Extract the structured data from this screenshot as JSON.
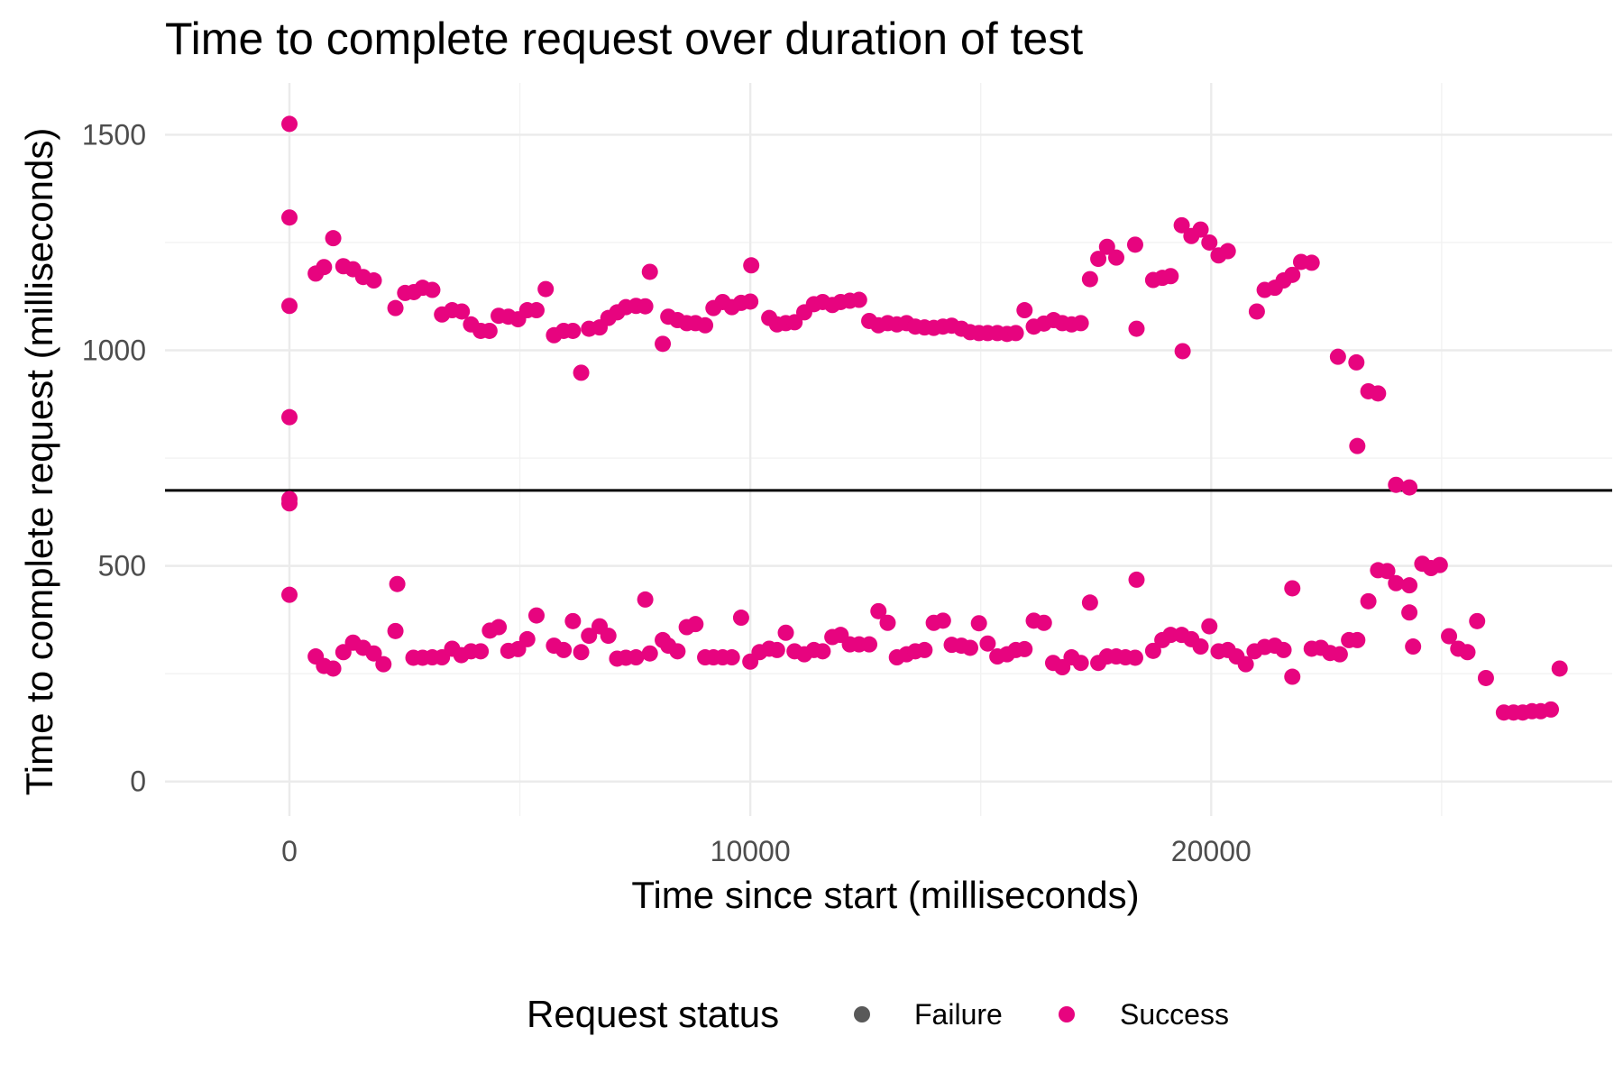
{
  "chart_data": {
    "type": "scatter",
    "title": "Time to complete request over duration of test",
    "xlabel": "Time since start (milliseconds)",
    "ylabel": "Time to complete request (milliseconds)",
    "xlim": [
      -2700,
      28700
    ],
    "ylim": [
      -80,
      1620
    ],
    "x_ticks": [
      0,
      10000,
      20000
    ],
    "x_tick_labels": [
      "0",
      "10000",
      "20000"
    ],
    "y_ticks": [
      0,
      500,
      1000,
      1500
    ],
    "y_tick_labels": [
      "0",
      "500",
      "1000",
      "1500"
    ],
    "grid": true,
    "reference_line": {
      "y": 675
    },
    "legend": {
      "title": "Request status",
      "position": "bottom",
      "items": [
        {
          "label": "Failure",
          "color": "#595959"
        },
        {
          "label": "Success",
          "color": "#e7047f"
        }
      ]
    },
    "series": [
      {
        "name": "Success",
        "color": "#e7047f",
        "points": [
          [
            0,
            1525
          ],
          [
            0,
            1308
          ],
          [
            0,
            1103
          ],
          [
            0,
            845
          ],
          [
            0,
            655
          ],
          [
            0,
            645
          ],
          [
            0,
            433
          ],
          [
            570,
            1178
          ],
          [
            750,
            1193
          ],
          [
            950,
            1260
          ],
          [
            1170,
            1195
          ],
          [
            1380,
            1188
          ],
          [
            1600,
            1170
          ],
          [
            1830,
            1162
          ],
          [
            2300,
            1098
          ],
          [
            2510,
            1133
          ],
          [
            2700,
            1135
          ],
          [
            2890,
            1145
          ],
          [
            3100,
            1140
          ],
          [
            3310,
            1083
          ],
          [
            3530,
            1093
          ],
          [
            3740,
            1090
          ],
          [
            3940,
            1060
          ],
          [
            4150,
            1045
          ],
          [
            4340,
            1045
          ],
          [
            4540,
            1080
          ],
          [
            4750,
            1078
          ],
          [
            4960,
            1072
          ],
          [
            5160,
            1093
          ],
          [
            5360,
            1093
          ],
          [
            5560,
            1142
          ],
          [
            5740,
            1035
          ],
          [
            5950,
            1045
          ],
          [
            6150,
            1045
          ],
          [
            6330,
            948
          ],
          [
            6500,
            1050
          ],
          [
            6730,
            1053
          ],
          [
            6920,
            1075
          ],
          [
            7110,
            1088
          ],
          [
            7300,
            1100
          ],
          [
            7520,
            1103
          ],
          [
            7720,
            1102
          ],
          [
            7820,
            1182
          ],
          [
            8100,
            1015
          ],
          [
            8220,
            1078
          ],
          [
            8420,
            1070
          ],
          [
            8620,
            1063
          ],
          [
            8810,
            1063
          ],
          [
            9020,
            1058
          ],
          [
            9200,
            1098
          ],
          [
            9400,
            1112
          ],
          [
            9600,
            1100
          ],
          [
            9800,
            1110
          ],
          [
            10000,
            1113
          ],
          [
            10020,
            1197
          ],
          [
            10410,
            1075
          ],
          [
            10580,
            1060
          ],
          [
            10770,
            1063
          ],
          [
            10960,
            1065
          ],
          [
            11170,
            1088
          ],
          [
            11380,
            1107
          ],
          [
            11570,
            1112
          ],
          [
            11780,
            1105
          ],
          [
            11960,
            1112
          ],
          [
            12160,
            1115
          ],
          [
            12360,
            1117
          ],
          [
            12580,
            1068
          ],
          [
            12780,
            1058
          ],
          [
            12980,
            1063
          ],
          [
            13180,
            1060
          ],
          [
            13390,
            1063
          ],
          [
            13580,
            1055
          ],
          [
            13780,
            1053
          ],
          [
            13980,
            1052
          ],
          [
            14180,
            1055
          ],
          [
            14370,
            1057
          ],
          [
            14580,
            1050
          ],
          [
            14770,
            1042
          ],
          [
            14960,
            1040
          ],
          [
            15150,
            1040
          ],
          [
            15360,
            1040
          ],
          [
            15570,
            1038
          ],
          [
            15760,
            1040
          ],
          [
            15950,
            1093
          ],
          [
            16150,
            1055
          ],
          [
            16370,
            1062
          ],
          [
            16580,
            1070
          ],
          [
            16770,
            1063
          ],
          [
            16970,
            1060
          ],
          [
            17170,
            1063
          ],
          [
            17370,
            1165
          ],
          [
            17550,
            1212
          ],
          [
            17740,
            1240
          ],
          [
            17940,
            1215
          ],
          [
            18350,
            1245
          ],
          [
            18380,
            1050
          ],
          [
            18740,
            1163
          ],
          [
            18940,
            1168
          ],
          [
            19120,
            1172
          ],
          [
            19380,
            998
          ],
          [
            19360,
            1290
          ],
          [
            19570,
            1265
          ],
          [
            19770,
            1280
          ],
          [
            19960,
            1250
          ],
          [
            20160,
            1220
          ],
          [
            20360,
            1230
          ],
          [
            20990,
            1090
          ],
          [
            21160,
            1140
          ],
          [
            21380,
            1145
          ],
          [
            21570,
            1162
          ],
          [
            21760,
            1175
          ],
          [
            21950,
            1205
          ],
          [
            22180,
            1203
          ],
          [
            22750,
            985
          ],
          [
            23150,
            972
          ],
          [
            23170,
            778
          ],
          [
            23410,
            905
          ],
          [
            23620,
            900
          ],
          [
            24010,
            688
          ],
          [
            24300,
            682
          ],
          [
            570,
            290
          ],
          [
            750,
            268
          ],
          [
            950,
            262
          ],
          [
            1170,
            300
          ],
          [
            1380,
            322
          ],
          [
            1600,
            310
          ],
          [
            1830,
            297
          ],
          [
            2040,
            272
          ],
          [
            2300,
            349
          ],
          [
            2340,
            458
          ],
          [
            2690,
            287
          ],
          [
            2890,
            287
          ],
          [
            3100,
            288
          ],
          [
            3310,
            288
          ],
          [
            3530,
            308
          ],
          [
            3730,
            293
          ],
          [
            3940,
            302
          ],
          [
            4150,
            302
          ],
          [
            4350,
            350
          ],
          [
            4540,
            358
          ],
          [
            4750,
            303
          ],
          [
            4960,
            307
          ],
          [
            5160,
            330
          ],
          [
            5360,
            385
          ],
          [
            5740,
            315
          ],
          [
            5950,
            305
          ],
          [
            6150,
            372
          ],
          [
            6330,
            300
          ],
          [
            6500,
            338
          ],
          [
            6730,
            360
          ],
          [
            6920,
            338
          ],
          [
            7110,
            285
          ],
          [
            7300,
            287
          ],
          [
            7520,
            288
          ],
          [
            7720,
            422
          ],
          [
            7820,
            297
          ],
          [
            8100,
            328
          ],
          [
            8220,
            315
          ],
          [
            8420,
            302
          ],
          [
            8620,
            358
          ],
          [
            8810,
            365
          ],
          [
            9020,
            288
          ],
          [
            9200,
            288
          ],
          [
            9400,
            288
          ],
          [
            9600,
            288
          ],
          [
            9800,
            380
          ],
          [
            10000,
            278
          ],
          [
            10200,
            300
          ],
          [
            10410,
            308
          ],
          [
            10580,
            305
          ],
          [
            10770,
            345
          ],
          [
            10960,
            302
          ],
          [
            11170,
            295
          ],
          [
            11380,
            305
          ],
          [
            11570,
            302
          ],
          [
            11780,
            335
          ],
          [
            11960,
            340
          ],
          [
            12160,
            318
          ],
          [
            12360,
            318
          ],
          [
            12580,
            318
          ],
          [
            12780,
            395
          ],
          [
            12980,
            368
          ],
          [
            13180,
            288
          ],
          [
            13390,
            295
          ],
          [
            13580,
            302
          ],
          [
            13780,
            305
          ],
          [
            13980,
            368
          ],
          [
            14180,
            373
          ],
          [
            14370,
            317
          ],
          [
            14580,
            315
          ],
          [
            14770,
            310
          ],
          [
            14960,
            367
          ],
          [
            15150,
            320
          ],
          [
            15360,
            290
          ],
          [
            15570,
            295
          ],
          [
            15760,
            305
          ],
          [
            15950,
            307
          ],
          [
            16150,
            373
          ],
          [
            16370,
            368
          ],
          [
            16570,
            275
          ],
          [
            16770,
            265
          ],
          [
            16970,
            288
          ],
          [
            17170,
            275
          ],
          [
            17370,
            415
          ],
          [
            17550,
            275
          ],
          [
            17740,
            290
          ],
          [
            17940,
            290
          ],
          [
            18140,
            288
          ],
          [
            18350,
            287
          ],
          [
            18380,
            468
          ],
          [
            18740,
            303
          ],
          [
            18940,
            328
          ],
          [
            19120,
            340
          ],
          [
            19360,
            340
          ],
          [
            19570,
            330
          ],
          [
            19770,
            313
          ],
          [
            19960,
            360
          ],
          [
            20160,
            302
          ],
          [
            20360,
            305
          ],
          [
            20550,
            290
          ],
          [
            20750,
            272
          ],
          [
            20940,
            302
          ],
          [
            21160,
            312
          ],
          [
            21380,
            315
          ],
          [
            21570,
            305
          ],
          [
            21760,
            448
          ],
          [
            21760,
            243
          ],
          [
            22180,
            308
          ],
          [
            22380,
            310
          ],
          [
            22580,
            298
          ],
          [
            22790,
            295
          ],
          [
            22990,
            328
          ],
          [
            23170,
            328
          ],
          [
            23410,
            418
          ],
          [
            23620,
            490
          ],
          [
            23820,
            488
          ],
          [
            24010,
            460
          ],
          [
            24300,
            455
          ],
          [
            24300,
            392
          ],
          [
            24380,
            313
          ],
          [
            24580,
            505
          ],
          [
            24770,
            495
          ],
          [
            24960,
            502
          ],
          [
            25160,
            337
          ],
          [
            25360,
            308
          ],
          [
            25560,
            300
          ],
          [
            25770,
            372
          ],
          [
            25960,
            240
          ],
          [
            26350,
            160
          ],
          [
            26560,
            160
          ],
          [
            26760,
            160
          ],
          [
            26960,
            163
          ],
          [
            27150,
            163
          ],
          [
            27370,
            167
          ],
          [
            27560,
            262
          ]
        ]
      }
    ]
  }
}
